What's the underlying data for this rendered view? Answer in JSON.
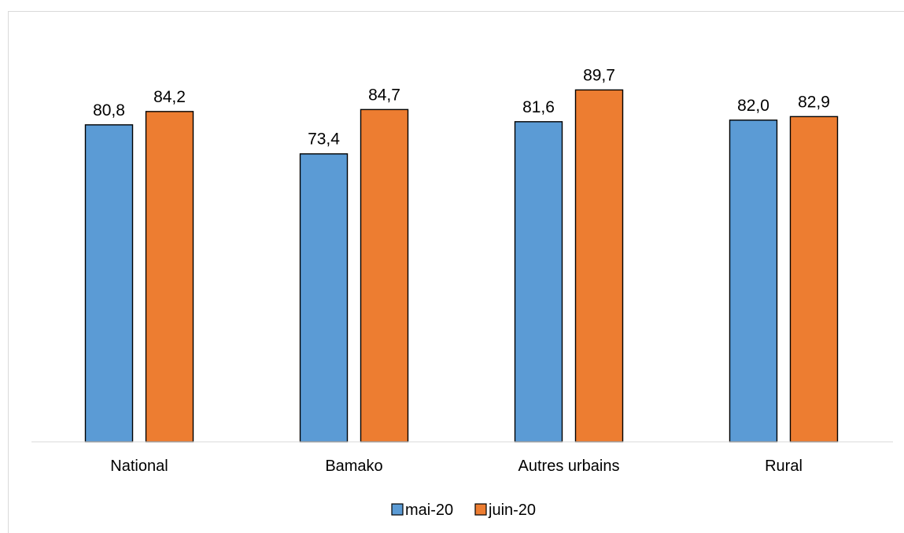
{
  "chart_data": {
    "type": "bar",
    "title": "",
    "xlabel": "",
    "ylabel": "",
    "ylim": [
      0,
      100
    ],
    "grid": false,
    "legend_position": "bottom",
    "categories": [
      "National",
      "Bamako",
      "Autres urbains",
      "Rural"
    ],
    "series": [
      {
        "name": "mai-20",
        "color": "#5b9bd5",
        "values": [
          80.8,
          73.4,
          81.6,
          82.0
        ],
        "labels": [
          "80,8",
          "73,4",
          "81,6",
          "82,0"
        ]
      },
      {
        "name": "juin-20",
        "color": "#ed7d31",
        "values": [
          84.2,
          84.7,
          89.7,
          82.9
        ],
        "labels": [
          "84,2",
          "84,7",
          "89,7",
          "82,9"
        ]
      }
    ]
  }
}
